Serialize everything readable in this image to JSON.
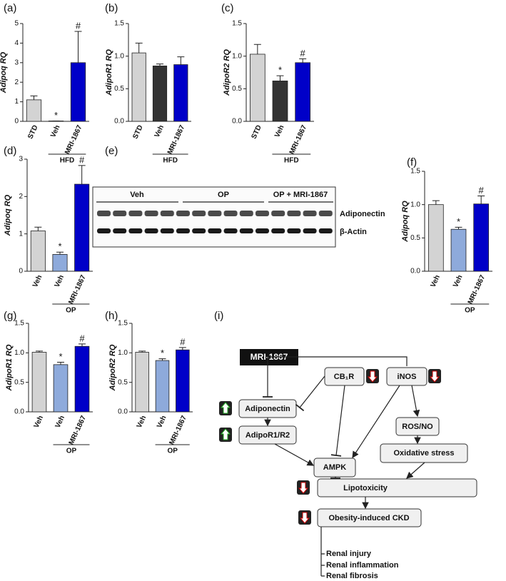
{
  "chart_data": [
    {
      "type": "bar",
      "panel": "(a)",
      "ylabel": "Adipoq RQ",
      "categories": [
        "STD",
        "Veh",
        "MRI-1867"
      ],
      "values": [
        1.1,
        0.02,
        3.0
      ],
      "errors": [
        0.2,
        0,
        1.6
      ],
      "annotations": [
        null,
        "*",
        "#"
      ],
      "colors": [
        "#d3d3d3",
        "#333333",
        "#0000c8"
      ],
      "group_label": "HFD",
      "ylim": [
        0,
        5
      ],
      "yticks": [
        0,
        1,
        2,
        3,
        4,
        5
      ]
    },
    {
      "type": "bar",
      "panel": "(b)",
      "ylabel": "AdipoR1 RQ",
      "categories": [
        "STD",
        "Veh",
        "MRI-1867"
      ],
      "values": [
        1.05,
        0.85,
        0.87
      ],
      "errors": [
        0.15,
        0.03,
        0.12
      ],
      "annotations": [
        null,
        null,
        null
      ],
      "colors": [
        "#d3d3d3",
        "#333333",
        "#0000c8"
      ],
      "group_label": "HFD",
      "ylim": [
        0,
        1.5
      ],
      "yticks": [
        {
          "value": 0,
          "label": "0.0"
        },
        0.5,
        {
          "value": 1,
          "label": "1.0"
        },
        1.5
      ]
    },
    {
      "type": "bar",
      "panel": "(c)",
      "ylabel": "AdipoR2 RQ",
      "categories": [
        "STD",
        "Veh",
        "MRI-1867"
      ],
      "values": [
        1.03,
        0.62,
        0.9
      ],
      "errors": [
        0.15,
        0.08,
        0.06
      ],
      "annotations": [
        null,
        "*",
        "#"
      ],
      "colors": [
        "#d3d3d3",
        "#333333",
        "#0000c8"
      ],
      "group_label": "HFD",
      "ylim": [
        0,
        1.5
      ],
      "yticks": [
        {
          "value": 0,
          "label": "0.0"
        },
        0.5,
        {
          "value": 1,
          "label": "1.0"
        },
        1.5
      ]
    },
    {
      "type": "bar",
      "panel": "(d)",
      "ylabel": "Adipoq RQ",
      "categories": [
        "Veh",
        "Veh",
        "MRI-1867"
      ],
      "values": [
        1.08,
        0.45,
        2.33
      ],
      "errors": [
        0.1,
        0.06,
        0.5
      ],
      "annotations": [
        null,
        "*",
        "#"
      ],
      "colors": [
        "#d3d3d3",
        "#8eaadb",
        "#0000c8"
      ],
      "group_label": "OP",
      "ylim": [
        0,
        3
      ],
      "yticks": [
        0,
        1,
        2,
        3
      ]
    },
    {
      "type": "bar",
      "panel": "(f)",
      "ylabel": "Adipoq RQ",
      "categories": [
        "Veh",
        "Veh",
        "MRI-1867"
      ],
      "values": [
        1.0,
        0.63,
        1.01
      ],
      "errors": [
        0.06,
        0.03,
        0.12
      ],
      "annotations": [
        null,
        "*",
        "#"
      ],
      "colors": [
        "#d3d3d3",
        "#8eaadb",
        "#0000c8"
      ],
      "group_label": "OP",
      "ylim": [
        0,
        1.5
      ],
      "yticks": [
        {
          "value": 0,
          "label": "0.0"
        },
        0.5,
        {
          "value": 1,
          "label": "1.0"
        },
        1.5
      ]
    },
    {
      "type": "bar",
      "panel": "(g)",
      "ylabel": "AdipoR1 RQ",
      "categories": [
        "Veh",
        "Veh",
        "MRI-1867"
      ],
      "values": [
        1.01,
        0.8,
        1.11
      ],
      "errors": [
        0.02,
        0.04,
        0.04
      ],
      "annotations": [
        null,
        "*",
        "#"
      ],
      "colors": [
        "#d3d3d3",
        "#8eaadb",
        "#0000c8"
      ],
      "group_label": "OP",
      "ylim": [
        0,
        1.5
      ],
      "yticks": [
        {
          "value": 0,
          "label": "0.0"
        },
        0.5,
        {
          "value": 1,
          "label": "1.0"
        },
        1.5
      ]
    },
    {
      "type": "bar",
      "panel": "(h)",
      "ylabel": "AdipoR2 RQ",
      "categories": [
        "Veh",
        "Veh",
        "MRI-1867"
      ],
      "values": [
        1.01,
        0.87,
        1.05
      ],
      "errors": [
        0.02,
        0.03,
        0.04
      ],
      "annotations": [
        null,
        "*",
        "#"
      ],
      "colors": [
        "#d3d3d3",
        "#8eaadb",
        "#0000c8"
      ],
      "group_label": "OP",
      "ylim": [
        0,
        1.5
      ],
      "yticks": [
        {
          "value": 0,
          "label": "0.0"
        },
        0.5,
        {
          "value": 1,
          "label": "1.0"
        },
        1.5
      ]
    }
  ],
  "blot": {
    "panel": "(e)",
    "groups": [
      "Veh",
      "OP",
      "OP + MRI-1867"
    ],
    "bands": [
      "Adiponectin",
      "β-Actin"
    ]
  },
  "diagram": {
    "panel": "(i)",
    "nodes": [
      "MRI-1867",
      "CB₁R",
      "iNOS",
      "Adiponectin",
      "AdipoR1/R2",
      "AMPK",
      "ROS/NO",
      "Oxidative stress",
      "Lipotoxicity",
      "Obesity-induced CKD"
    ],
    "outcomes": [
      "Renal injury",
      "Renal inflammation",
      "Renal fibrosis"
    ]
  }
}
